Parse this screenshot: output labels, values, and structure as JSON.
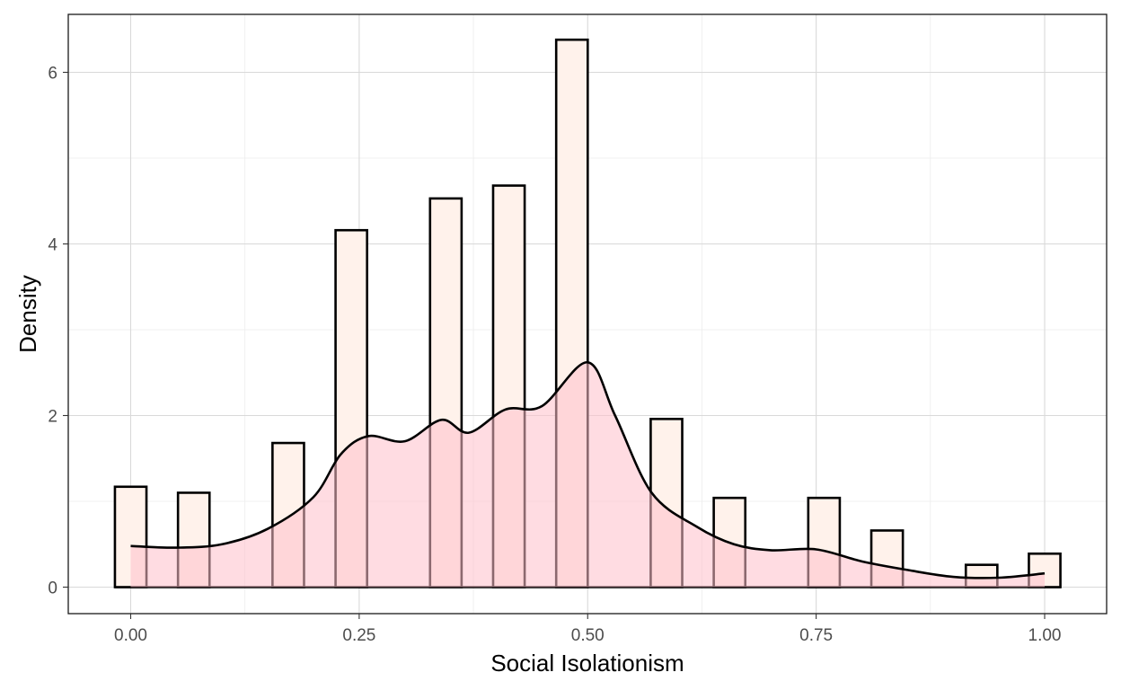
{
  "chart_data": {
    "type": "bar",
    "subtype": "histogram-with-density",
    "xlabel": "Social Isolationism",
    "ylabel": "Density",
    "xlim": [
      -0.07,
      1.07
    ],
    "ylim": [
      -0.3,
      6.65
    ],
    "x_ticks": [
      0.0,
      0.25,
      0.5,
      0.75,
      1.0
    ],
    "x_tick_labels": [
      "0.00",
      "0.25",
      "0.50",
      "0.75",
      "1.00"
    ],
    "y_ticks": [
      0,
      2,
      4,
      6
    ],
    "y_tick_labels": [
      "0",
      "2",
      "4",
      "6"
    ],
    "grid": true,
    "legend": "none",
    "bin_width": 0.0345,
    "bins": [
      {
        "x": 0.0,
        "density": 1.17
      },
      {
        "x": 0.0345,
        "density": 0.0
      },
      {
        "x": 0.069,
        "density": 1.1
      },
      {
        "x": 0.1034,
        "density": 0.0
      },
      {
        "x": 0.1379,
        "density": 0.0
      },
      {
        "x": 0.1724,
        "density": 1.68
      },
      {
        "x": 0.2069,
        "density": 0.0
      },
      {
        "x": 0.2414,
        "density": 4.16
      },
      {
        "x": 0.2759,
        "density": 0.0
      },
      {
        "x": 0.3103,
        "density": 0.0
      },
      {
        "x": 0.3448,
        "density": 4.53
      },
      {
        "x": 0.3793,
        "density": 0.0
      },
      {
        "x": 0.4138,
        "density": 4.68
      },
      {
        "x": 0.4483,
        "density": 0.0
      },
      {
        "x": 0.4828,
        "density": 6.38
      },
      {
        "x": 0.5172,
        "density": 0.0
      },
      {
        "x": 0.5517,
        "density": 0.0
      },
      {
        "x": 0.5862,
        "density": 1.96
      },
      {
        "x": 0.6207,
        "density": 0.0
      },
      {
        "x": 0.6552,
        "density": 1.04
      },
      {
        "x": 0.6897,
        "density": 0.0
      },
      {
        "x": 0.7241,
        "density": 0.0
      },
      {
        "x": 0.7586,
        "density": 1.04
      },
      {
        "x": 0.7931,
        "density": 0.0
      },
      {
        "x": 0.8276,
        "density": 0.66
      },
      {
        "x": 0.8621,
        "density": 0.0
      },
      {
        "x": 0.8966,
        "density": 0.0
      },
      {
        "x": 0.931,
        "density": 0.26
      },
      {
        "x": 0.9655,
        "density": 0.0
      },
      {
        "x": 1.0,
        "density": 0.39
      }
    ],
    "density_curve": {
      "x": [
        0.0,
        0.05,
        0.1,
        0.15,
        0.2,
        0.23,
        0.26,
        0.3,
        0.34,
        0.37,
        0.41,
        0.45,
        0.5,
        0.53,
        0.57,
        0.62,
        0.66,
        0.7,
        0.75,
        0.8,
        0.85,
        0.9,
        0.95,
        1.0
      ],
      "y": [
        0.48,
        0.46,
        0.5,
        0.68,
        1.05,
        1.55,
        1.76,
        1.7,
        1.95,
        1.8,
        2.07,
        2.11,
        2.62,
        2.0,
        1.1,
        0.7,
        0.5,
        0.43,
        0.44,
        0.3,
        0.2,
        0.12,
        0.11,
        0.16
      ]
    },
    "colors": {
      "bar_fill": "#fff2eb",
      "bar_outline": "#000000",
      "density_fill": "#ffc0cb",
      "density_fill_opacity": 0.55,
      "density_line": "#000000",
      "grid": "#d9d9d9",
      "background": "#ffffff"
    }
  }
}
